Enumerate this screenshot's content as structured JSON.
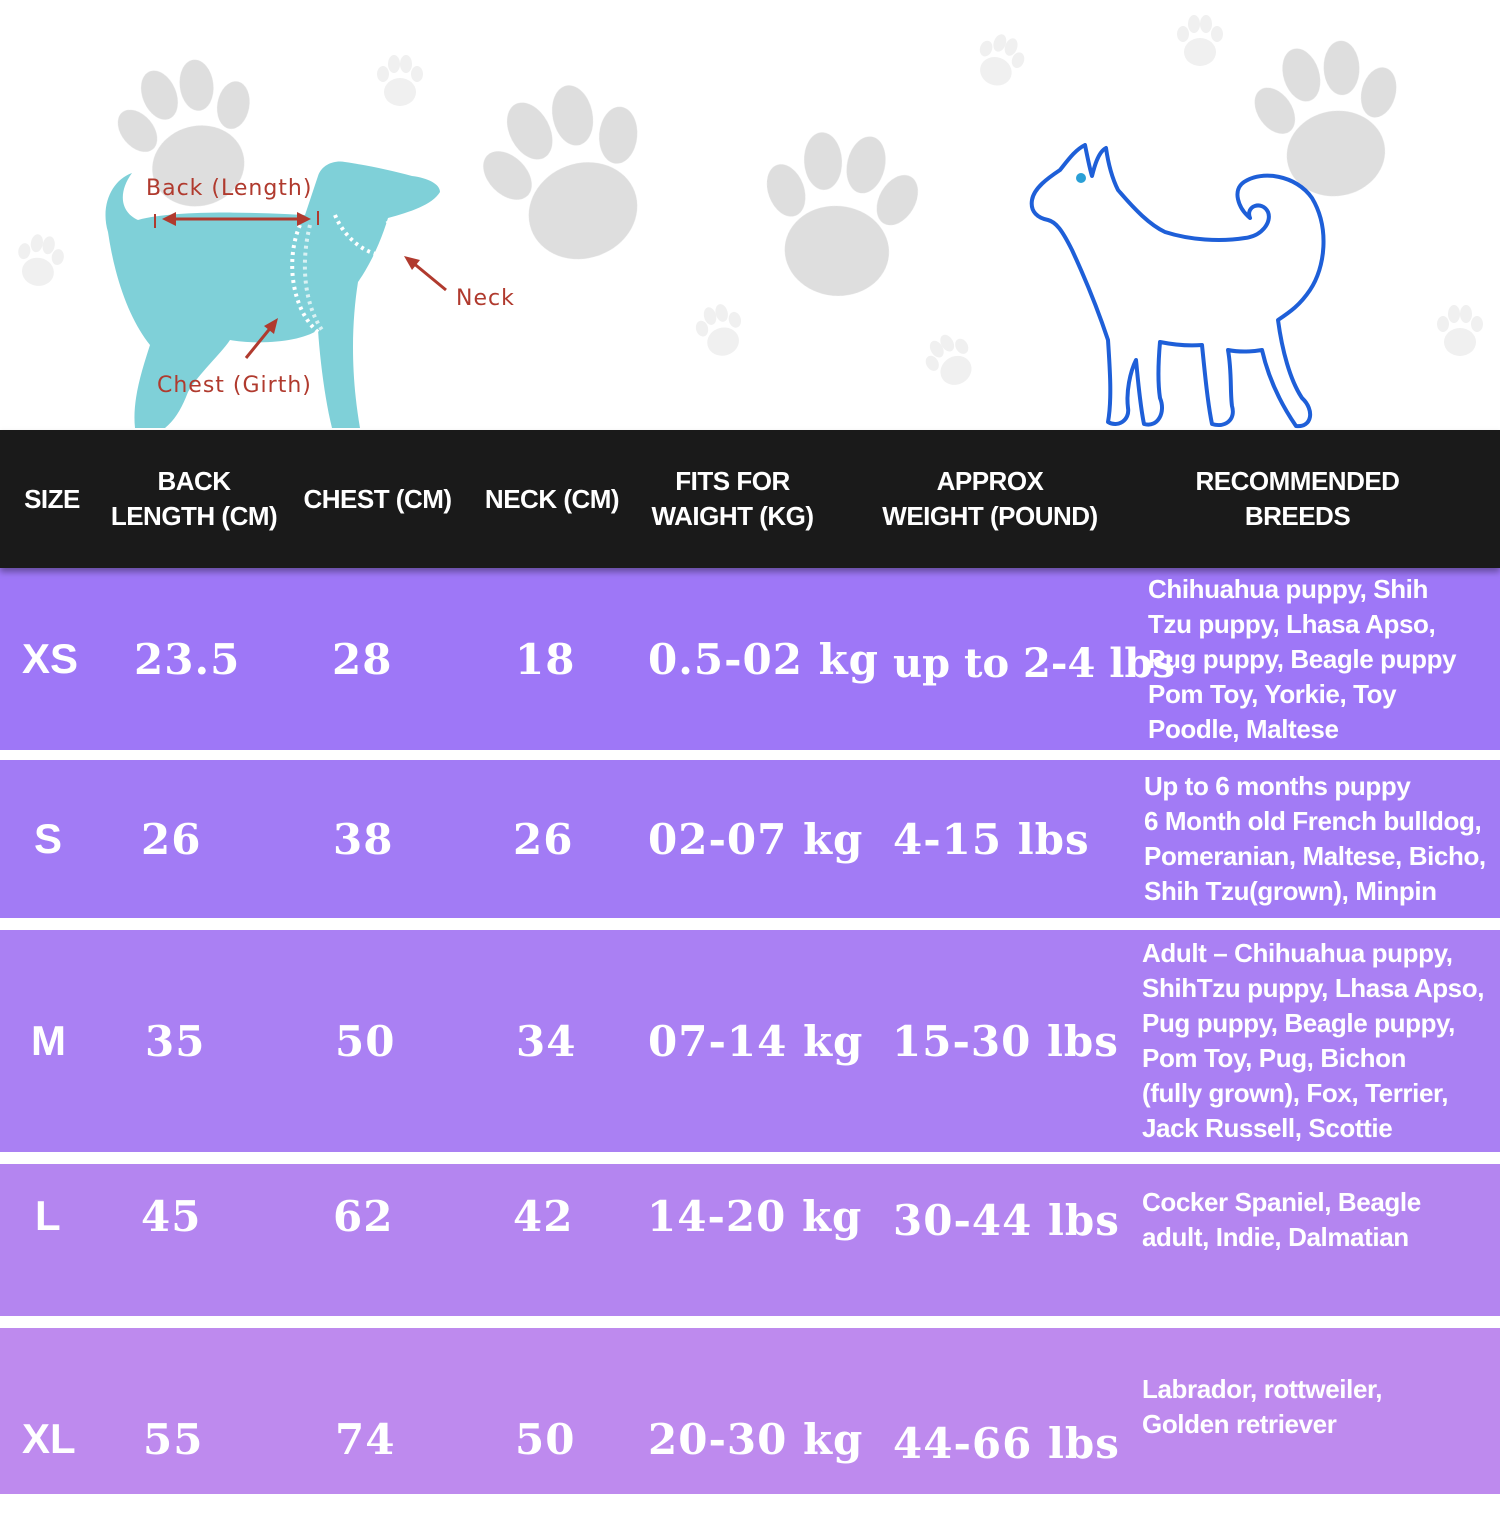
{
  "diagram": {
    "back_label": "Back (Length)",
    "neck_label": "Neck",
    "chest_label": "Chest (Girth)"
  },
  "colors": {
    "header_bg": "#1a1a1a",
    "row_colors": [
      "#9e77f7",
      "#a27bf5",
      "#aa80f3",
      "#b485f0",
      "#be8aee"
    ],
    "separator": "#ffffff",
    "diagram_dog": "#7fd0d8",
    "diagram_labels": "#b03a2e",
    "outline_dog": "#1e5fd8",
    "paw": "#d4d4d4"
  },
  "table": {
    "headers": [
      "SIZE",
      "BACK\nLENGTH (CM)",
      "CHEST (CM)",
      "NECK (CM)",
      "FITS FOR\nWAIGHT (KG)",
      "APPROX\nWEIGHT (POUND)",
      "RECOMMENDED\nBREEDS"
    ],
    "rows": [
      {
        "size": "XS",
        "back": "23.5",
        "chest": "28",
        "neck": "18",
        "kg": "0.5-02 kg",
        "lbs": "up to 2-4 lbs",
        "breeds": "Chihuahua puppy, Shih\nTzu puppy, Lhasa Apso,\nPug puppy, Beagle puppy\nPom Toy, Yorkie, Toy\nPoodle, Maltese"
      },
      {
        "size": "S",
        "back": "26",
        "chest": "38",
        "neck": "26",
        "kg": "02-07 kg",
        "lbs": "4-15 lbs",
        "breeds": "Up to 6 months puppy\n6 Month old French bulldog,\nPomeranian, Maltese, Bicho,\nShih Tzu(grown), Minpin"
      },
      {
        "size": "M",
        "back": "35",
        "chest": "50",
        "neck": "34",
        "kg": "07-14 kg",
        "lbs": "15-30 lbs",
        "breeds": "Adult – Chihuahua puppy,\nShihTzu puppy, Lhasa Apso,\nPug puppy, Beagle puppy,\nPom Toy, Pug, Bichon\n(fully grown), Fox, Terrier,\nJack Russell,   Scottie"
      },
      {
        "size": "L",
        "back": "45",
        "chest": "62",
        "neck": "42",
        "kg": "14-20 kg",
        "lbs": "30-44 lbs",
        "breeds": "Cocker Spaniel, Beagle\nadult, Indie, Dalmatian"
      },
      {
        "size": "XL",
        "back": "55",
        "chest": "74",
        "neck": "50",
        "kg": "20-30 kg",
        "lbs": "44-66 lbs",
        "breeds": "Labrador, rottweiler,\nGolden retriever"
      }
    ]
  }
}
